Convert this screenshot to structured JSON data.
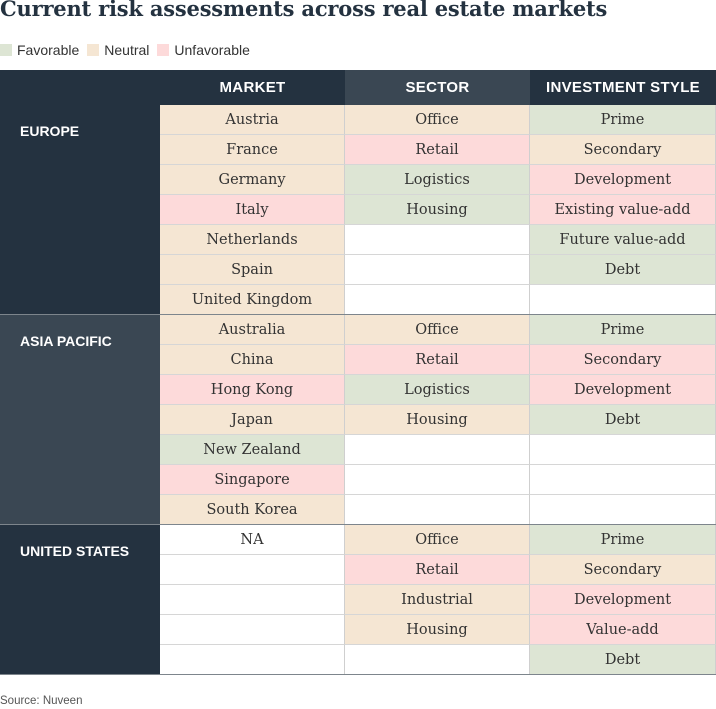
{
  "title": "Current risk assessments across real estate markets",
  "legend": [
    {
      "label": "Favorable",
      "status": "favorable"
    },
    {
      "label": "Neutral",
      "status": "neutral"
    },
    {
      "label": "Unfavorable",
      "status": "unfavorable"
    }
  ],
  "colors": {
    "favorable": "#dde5d4",
    "neutral": "#f5e6d3",
    "unfavorable": "#fddada",
    "empty": "#ffffff",
    "header_market": "#243240",
    "header_sector": "#3a4753",
    "header_style": "#243240",
    "region_dark": "#243240",
    "region_light": "#3a4753"
  },
  "source": "Source: Nuveen",
  "chart_data": {
    "type": "table",
    "columns": [
      "MARKET",
      "SECTOR",
      "INVESTMENT STYLE"
    ],
    "regions": [
      {
        "name": "EUROPE",
        "rows": 7,
        "market": [
          {
            "label": "Austria",
            "status": "neutral"
          },
          {
            "label": "France",
            "status": "neutral"
          },
          {
            "label": "Germany",
            "status": "neutral"
          },
          {
            "label": "Italy",
            "status": "unfavorable"
          },
          {
            "label": "Netherlands",
            "status": "neutral"
          },
          {
            "label": "Spain",
            "status": "neutral"
          },
          {
            "label": "United Kingdom",
            "status": "neutral"
          }
        ],
        "sector": [
          {
            "label": "Office",
            "status": "neutral"
          },
          {
            "label": "Retail",
            "status": "unfavorable"
          },
          {
            "label": "Logistics",
            "status": "favorable"
          },
          {
            "label": "Housing",
            "status": "favorable"
          }
        ],
        "style": [
          {
            "label": "Prime",
            "status": "favorable"
          },
          {
            "label": "Secondary",
            "status": "neutral"
          },
          {
            "label": "Development",
            "status": "unfavorable"
          },
          {
            "label": "Existing value-add",
            "status": "unfavorable"
          },
          {
            "label": "Future value-add",
            "status": "favorable"
          },
          {
            "label": "Debt",
            "status": "favorable"
          }
        ]
      },
      {
        "name": "ASIA PACIFIC",
        "rows": 7,
        "market": [
          {
            "label": "Australia",
            "status": "neutral"
          },
          {
            "label": "China",
            "status": "neutral"
          },
          {
            "label": "Hong Kong",
            "status": "unfavorable"
          },
          {
            "label": "Japan",
            "status": "neutral"
          },
          {
            "label": "New Zealand",
            "status": "favorable"
          },
          {
            "label": "Singapore",
            "status": "unfavorable"
          },
          {
            "label": "South Korea",
            "status": "neutral"
          }
        ],
        "sector": [
          {
            "label": "Office",
            "status": "neutral"
          },
          {
            "label": "Retail",
            "status": "unfavorable"
          },
          {
            "label": "Logistics",
            "status": "favorable"
          },
          {
            "label": "Housing",
            "status": "neutral"
          }
        ],
        "style": [
          {
            "label": "Prime",
            "status": "favorable"
          },
          {
            "label": "Secondary",
            "status": "unfavorable"
          },
          {
            "label": "Development",
            "status": "unfavorable"
          },
          {
            "label": "Debt",
            "status": "favorable"
          }
        ]
      },
      {
        "name": "UNITED STATES",
        "rows": 5,
        "market": [
          {
            "label": "NA",
            "status": "none"
          }
        ],
        "sector": [
          {
            "label": "Office",
            "status": "neutral"
          },
          {
            "label": "Retail",
            "status": "unfavorable"
          },
          {
            "label": "Industrial",
            "status": "neutral"
          },
          {
            "label": "Housing",
            "status": "neutral"
          }
        ],
        "style": [
          {
            "label": "Prime",
            "status": "favorable"
          },
          {
            "label": "Secondary",
            "status": "neutral"
          },
          {
            "label": "Development",
            "status": "unfavorable"
          },
          {
            "label": "Value-add",
            "status": "unfavorable"
          },
          {
            "label": "Debt",
            "status": "favorable"
          }
        ]
      }
    ]
  }
}
